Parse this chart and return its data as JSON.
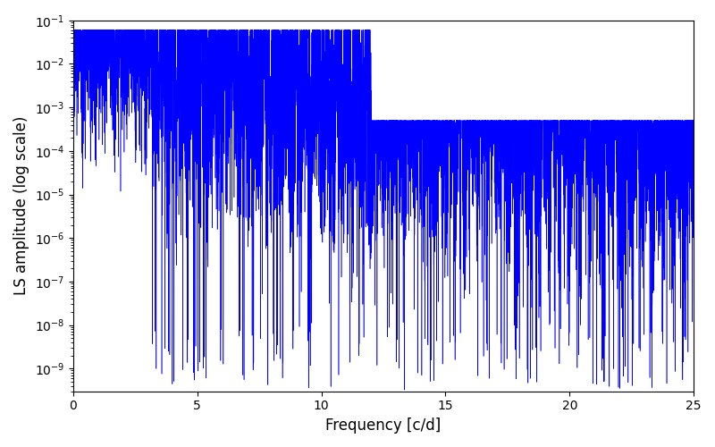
{
  "title": "",
  "xlabel": "Frequency [c/d]",
  "ylabel": "LS amplitude (log scale)",
  "xlim": [
    0,
    25
  ],
  "ylim": [
    3e-10,
    0.1
  ],
  "line_color": "#0000ff",
  "line_width": 0.4,
  "yscale": "log",
  "figsize": [
    8.0,
    5.0
  ],
  "dpi": 100,
  "freq_max": 25.0,
  "n_points": 10000,
  "seed": 7,
  "background_color": "#ffffff"
}
